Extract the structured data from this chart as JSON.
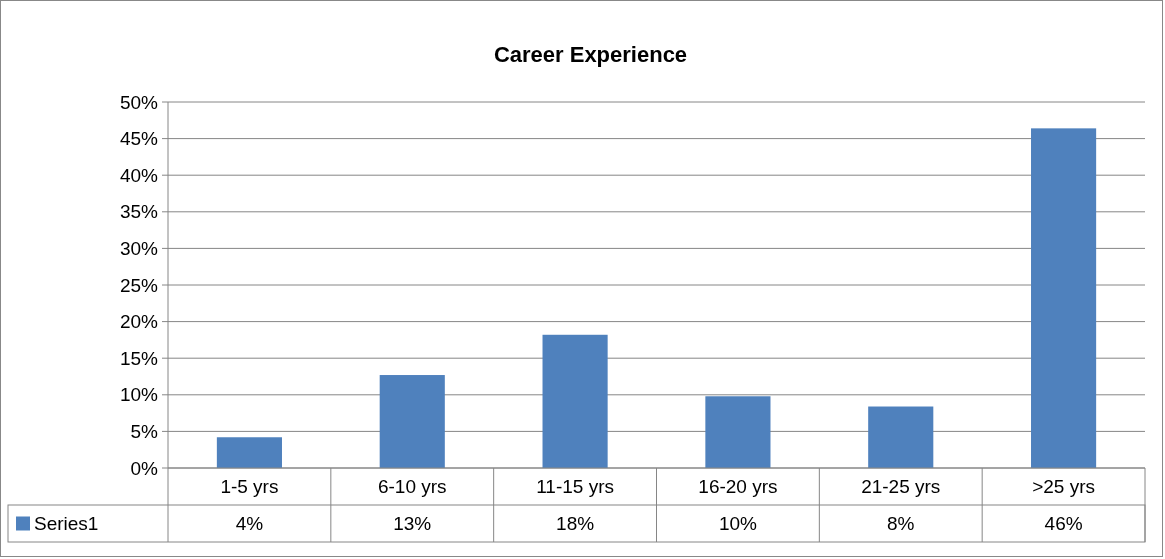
{
  "chart_data": {
    "type": "bar",
    "title": "Career Experience",
    "categories": [
      "1-5 yrs",
      "6-10 yrs",
      "11-15 yrs",
      "16-20 yrs",
      "21-25 yrs",
      ">25 yrs"
    ],
    "series": [
      {
        "name": "Series1",
        "color": "#4f81bd",
        "values": [
          4.2,
          12.7,
          18.2,
          9.8,
          8.4,
          46.4
        ],
        "value_labels": [
          "4%",
          "13%",
          "18%",
          "10%",
          "8%",
          "46%"
        ]
      }
    ],
    "ylim": [
      0,
      50
    ],
    "yticks": [
      {
        "value": 0,
        "label": "0%"
      },
      {
        "value": 5,
        "label": "5%"
      },
      {
        "value": 10,
        "label": "10%"
      },
      {
        "value": 15,
        "label": "15%"
      },
      {
        "value": 20,
        "label": "20%"
      },
      {
        "value": 25,
        "label": "25%"
      },
      {
        "value": 30,
        "label": "30%"
      },
      {
        "value": 35,
        "label": "35%"
      },
      {
        "value": 40,
        "label": "40%"
      },
      {
        "value": 45,
        "label": "45%"
      },
      {
        "value": 50,
        "label": "50%"
      }
    ],
    "grid": "y",
    "legend": "bottom"
  }
}
